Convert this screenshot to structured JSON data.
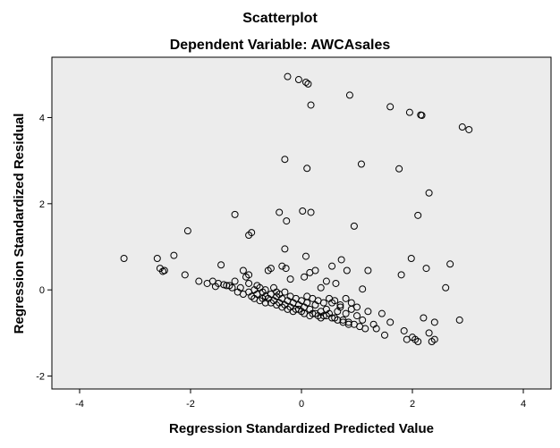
{
  "chart_data": {
    "type": "scatter",
    "title": "Scatterplot",
    "subtitle": "Dependent Variable: AWCAsales",
    "xlabel": "Regression Standardized Predicted Value",
    "ylabel": "Regression Standardized Residual",
    "xlim": [
      -4.5,
      4.5
    ],
    "ylim": [
      -2.3,
      5.4
    ],
    "xticks": [
      -4,
      -2,
      0,
      2,
      4
    ],
    "yticks": [
      -2,
      0,
      2,
      4
    ],
    "xtick_labels": [
      "-4",
      "-2",
      "0",
      "2",
      "4"
    ],
    "ytick_labels": [
      "-2",
      "0",
      "2",
      "4"
    ],
    "grid": false,
    "plot_background": "#ececec",
    "marker_color": "#000000",
    "points": [
      [
        -0.25,
        4.95
      ],
      [
        -0.05,
        4.88
      ],
      [
        0.08,
        4.82
      ],
      [
        0.12,
        4.78
      ],
      [
        0.87,
        4.52
      ],
      [
        0.17,
        4.29
      ],
      [
        1.6,
        4.25
      ],
      [
        1.95,
        4.12
      ],
      [
        2.15,
        4.06
      ],
      [
        2.17,
        4.05
      ],
      [
        2.9,
        3.78
      ],
      [
        3.02,
        3.72
      ],
      [
        -0.3,
        3.03
      ],
      [
        1.08,
        2.92
      ],
      [
        0.1,
        2.82
      ],
      [
        1.76,
        2.81
      ],
      [
        2.3,
        2.25
      ],
      [
        -1.2,
        1.75
      ],
      [
        -0.27,
        1.6
      ],
      [
        -0.4,
        1.8
      ],
      [
        0.02,
        1.83
      ],
      [
        0.17,
        1.8
      ],
      [
        0.95,
        1.48
      ],
      [
        2.1,
        1.73
      ],
      [
        -2.05,
        1.37
      ],
      [
        -0.95,
        1.27
      ],
      [
        -0.9,
        1.33
      ],
      [
        -3.2,
        0.73
      ],
      [
        -2.6,
        0.73
      ],
      [
        -2.3,
        0.8
      ],
      [
        -0.3,
        0.95
      ],
      [
        0.08,
        0.78
      ],
      [
        0.72,
        0.7
      ],
      [
        1.98,
        0.73
      ],
      [
        2.68,
        0.6
      ],
      [
        -2.55,
        0.5
      ],
      [
        -2.5,
        0.43
      ],
      [
        -2.47,
        0.45
      ],
      [
        -2.1,
        0.35
      ],
      [
        -1.85,
        0.2
      ],
      [
        -1.45,
        0.58
      ],
      [
        -1.05,
        0.45
      ],
      [
        -0.6,
        0.45
      ],
      [
        -0.55,
        0.5
      ],
      [
        -0.35,
        0.55
      ],
      [
        -0.28,
        0.5
      ],
      [
        0.15,
        0.4
      ],
      [
        0.25,
        0.45
      ],
      [
        0.55,
        0.55
      ],
      [
        0.82,
        0.45
      ],
      [
        1.2,
        0.45
      ],
      [
        1.8,
        0.35
      ],
      [
        2.25,
        0.5
      ],
      [
        2.6,
        0.05
      ],
      [
        -1.6,
        0.2
      ],
      [
        -1.5,
        0.15
      ],
      [
        -1.35,
        0.1
      ],
      [
        -1.2,
        0.2
      ],
      [
        -1.1,
        0.05
      ],
      [
        -1.0,
        0.3
      ],
      [
        -0.95,
        0.15
      ],
      [
        -0.85,
        0.0
      ],
      [
        -0.8,
        -0.1
      ],
      [
        -0.7,
        -0.05
      ],
      [
        -0.65,
        -0.15
      ],
      [
        -0.6,
        -0.2
      ],
      [
        -0.55,
        -0.1
      ],
      [
        -0.5,
        -0.25
      ],
      [
        -0.45,
        -0.15
      ],
      [
        -0.4,
        -0.3
      ],
      [
        -0.35,
        -0.2
      ],
      [
        -0.3,
        -0.35
      ],
      [
        -0.25,
        -0.25
      ],
      [
        -0.2,
        -0.4
      ],
      [
        -0.15,
        -0.3
      ],
      [
        -0.1,
        -0.45
      ],
      [
        -0.05,
        -0.35
      ],
      [
        0.0,
        -0.5
      ],
      [
        0.05,
        -0.4
      ],
      [
        0.1,
        -0.3
      ],
      [
        0.15,
        -0.45
      ],
      [
        0.2,
        -0.55
      ],
      [
        0.25,
        -0.35
      ],
      [
        0.3,
        -0.6
      ],
      [
        0.35,
        -0.5
      ],
      [
        0.4,
        -0.6
      ],
      [
        0.45,
        -0.45
      ],
      [
        0.5,
        -0.55
      ],
      [
        0.55,
        -0.3
      ],
      [
        0.6,
        -0.65
      ],
      [
        0.65,
        -0.5
      ],
      [
        0.7,
        -0.4
      ],
      [
        0.75,
        -0.7
      ],
      [
        0.8,
        -0.55
      ],
      [
        0.85,
        -0.75
      ],
      [
        0.9,
        -0.45
      ],
      [
        0.95,
        -0.8
      ],
      [
        1.0,
        -0.6
      ],
      [
        1.05,
        -0.85
      ],
      [
        1.1,
        -0.7
      ],
      [
        1.15,
        -0.9
      ],
      [
        1.2,
        -0.5
      ],
      [
        1.3,
        -0.8
      ],
      [
        1.35,
        -0.9
      ],
      [
        1.45,
        -0.55
      ],
      [
        1.5,
        -1.05
      ],
      [
        1.6,
        -0.75
      ],
      [
        1.85,
        -0.95
      ],
      [
        1.9,
        -1.15
      ],
      [
        2.0,
        -1.1
      ],
      [
        2.05,
        -1.15
      ],
      [
        2.1,
        -1.2
      ],
      [
        2.2,
        -0.65
      ],
      [
        2.3,
        -1.0
      ],
      [
        2.35,
        -1.2
      ],
      [
        2.4,
        -1.15
      ],
      [
        2.4,
        -0.75
      ],
      [
        2.85,
        -0.7
      ],
      [
        -1.3,
        0.1
      ],
      [
        -1.25,
        0.05
      ],
      [
        -1.15,
        -0.05
      ],
      [
        -1.05,
        -0.1
      ],
      [
        -0.95,
        -0.05
      ],
      [
        -0.9,
        -0.15
      ],
      [
        -0.85,
        -0.2
      ],
      [
        -0.75,
        -0.25
      ],
      [
        -0.7,
        -0.2
      ],
      [
        -0.65,
        -0.3
      ],
      [
        -0.55,
        -0.3
      ],
      [
        -0.45,
        -0.35
      ],
      [
        -0.35,
        -0.4
      ],
      [
        -0.25,
        -0.45
      ],
      [
        -0.15,
        -0.5
      ],
      [
        -0.05,
        -0.45
      ],
      [
        0.05,
        -0.55
      ],
      [
        0.15,
        -0.6
      ],
      [
        0.25,
        -0.55
      ],
      [
        0.35,
        -0.65
      ],
      [
        0.45,
        -0.6
      ],
      [
        0.55,
        -0.65
      ],
      [
        0.65,
        -0.7
      ],
      [
        0.75,
        -0.75
      ],
      [
        0.85,
        -0.8
      ],
      [
        -0.8,
        0.1
      ],
      [
        -0.75,
        0.05
      ],
      [
        -0.65,
        0.0
      ],
      [
        -0.5,
        0.05
      ],
      [
        -0.45,
        -0.05
      ],
      [
        -0.4,
        -0.1
      ],
      [
        -0.3,
        -0.05
      ],
      [
        -0.2,
        -0.15
      ],
      [
        -0.1,
        -0.2
      ],
      [
        0.0,
        -0.25
      ],
      [
        0.1,
        -0.15
      ],
      [
        0.2,
        -0.2
      ],
      [
        0.3,
        -0.25
      ],
      [
        0.4,
        -0.3
      ],
      [
        0.5,
        -0.2
      ],
      [
        0.6,
        -0.25
      ],
      [
        0.7,
        -0.35
      ],
      [
        0.8,
        -0.2
      ],
      [
        0.9,
        -0.3
      ],
      [
        1.0,
        -0.4
      ],
      [
        -1.4,
        0.12
      ],
      [
        -1.7,
        0.15
      ],
      [
        -1.55,
        0.08
      ],
      [
        -0.95,
        0.35
      ],
      [
        -0.2,
        0.25
      ],
      [
        0.05,
        0.3
      ],
      [
        0.35,
        0.05
      ],
      [
        0.45,
        0.2
      ],
      [
        0.62,
        0.15
      ],
      [
        1.1,
        0.02
      ]
    ]
  }
}
